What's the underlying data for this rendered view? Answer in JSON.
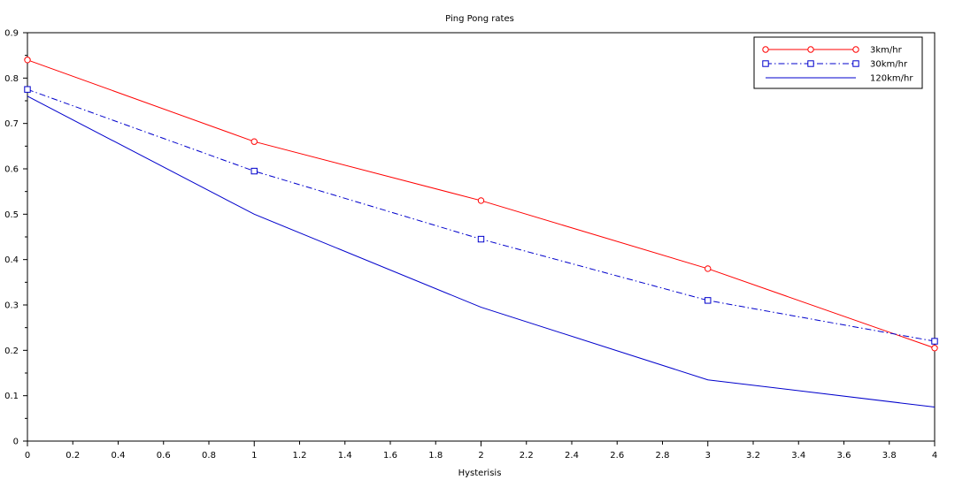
{
  "chart_data": {
    "type": "line",
    "title": "Ping Pong rates",
    "xlabel": "Hysterisis",
    "ylabel": "",
    "x": [
      0,
      1,
      2,
      3,
      4
    ],
    "xlim": [
      0,
      4
    ],
    "ylim": [
      0,
      0.9
    ],
    "x_ticks": [
      0,
      0.2,
      0.4,
      0.6,
      0.8,
      1,
      1.2,
      1.4,
      1.6,
      1.8,
      2,
      2.2,
      2.4,
      2.6,
      2.8,
      3,
      3.2,
      3.4,
      3.6,
      3.8,
      4
    ],
    "x_tick_labels": [
      "0",
      "0.2",
      "0.4",
      "0.6",
      "0.8",
      "1",
      "1.2",
      "1.4",
      "1.6",
      "1.8",
      "2",
      "2.2",
      "2.4",
      "2.6",
      "2.8",
      "3",
      "3.2",
      "3.4",
      "3.6",
      "3.8",
      "4"
    ],
    "y_ticks": [
      0,
      0.1,
      0.2,
      0.3,
      0.4,
      0.5,
      0.6,
      0.7,
      0.8,
      0.9
    ],
    "y_tick_labels": [
      "0",
      "0.1",
      "0.2",
      "0.3",
      "0.4",
      "0.5",
      "0.6",
      "0.7",
      "0.8",
      "0.9"
    ],
    "grid": false,
    "legend_position": "top-right",
    "series": [
      {
        "name": "3km/hr",
        "values": [
          0.84,
          0.66,
          0.53,
          0.38,
          0.205
        ],
        "color": "#ff0000",
        "line_style": "solid",
        "marker": "circle"
      },
      {
        "name": "30km/hr",
        "values": [
          0.775,
          0.595,
          0.445,
          0.31,
          0.22
        ],
        "color": "#0000cc",
        "line_style": "dash-dot",
        "marker": "square"
      },
      {
        "name": "120km/hr",
        "values": [
          0.76,
          0.5,
          0.295,
          0.135,
          0.075
        ],
        "color": "#0000cc",
        "line_style": "solid",
        "marker": "none"
      }
    ]
  }
}
